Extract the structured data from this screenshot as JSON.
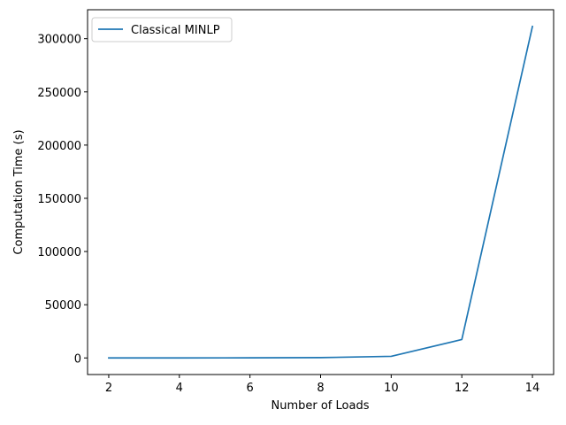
{
  "chart_data": {
    "type": "line",
    "title": "",
    "xlabel": "Number of Loads",
    "ylabel": "Computation Time (s)",
    "xlim": [
      1.4,
      14.6
    ],
    "ylim": [
      -15600,
      327200
    ],
    "xticks": [
      2,
      4,
      6,
      8,
      10,
      12,
      14
    ],
    "yticks": [
      0,
      50000,
      100000,
      150000,
      200000,
      250000,
      300000
    ],
    "grid": false,
    "legend_position": "top-left",
    "series": [
      {
        "name": "Classical MINLP",
        "color": "#1f77b4",
        "x": [
          2,
          4,
          6,
          8,
          10,
          12,
          14
        ],
        "y": [
          5,
          20,
          80,
          300,
          1500,
          17300,
          311500
        ]
      }
    ]
  }
}
